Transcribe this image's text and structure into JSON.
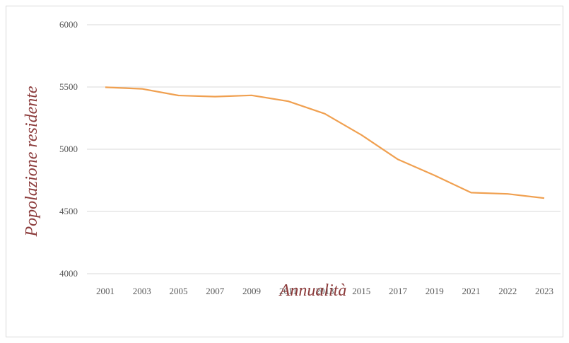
{
  "chart_data": {
    "type": "line",
    "xlabel": "Annualità",
    "ylabel": "Popolazione residente",
    "categories": [
      "2001",
      "2003",
      "2005",
      "2007",
      "2009",
      "2011",
      "2013",
      "2015",
      "2017",
      "2019",
      "2021",
      "2022",
      "2023"
    ],
    "y_ticks": [
      "4000",
      "4500",
      "5000",
      "5500",
      "6000"
    ],
    "ylim": [
      4000,
      6000
    ],
    "grid": true,
    "series": [
      {
        "values": [
          5498,
          5485,
          5432,
          5423,
          5433,
          5385,
          5285,
          5115,
          4918,
          4790,
          4651,
          4641,
          4607
        ],
        "color": "#f0a050"
      }
    ]
  }
}
